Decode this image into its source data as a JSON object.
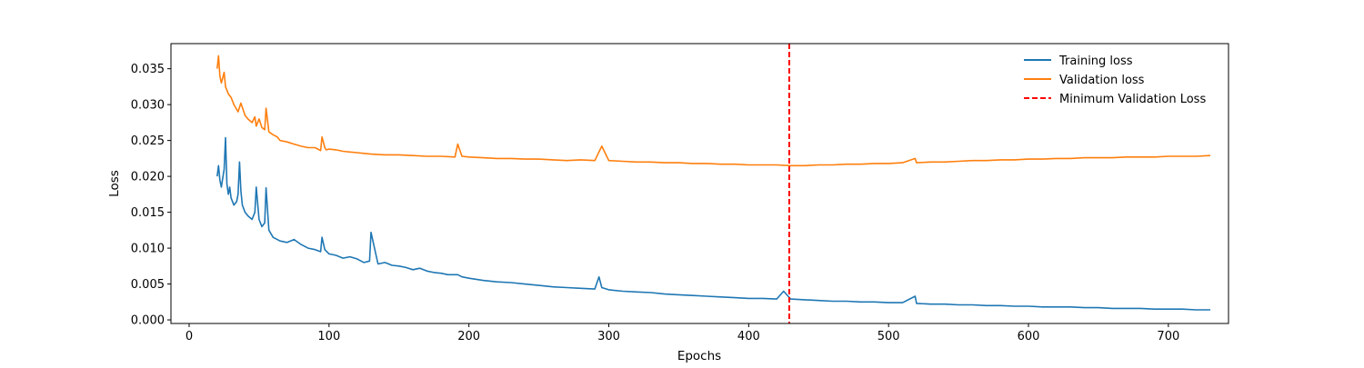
{
  "chart_data": {
    "type": "line",
    "title": "",
    "xlabel": "Epochs",
    "ylabel": "Loss",
    "xlim": [
      -13,
      743
    ],
    "ylim": [
      -0.0005,
      0.0385
    ],
    "xticks": [
      0,
      100,
      200,
      300,
      400,
      500,
      600,
      700
    ],
    "yticks": [
      0.0,
      0.005,
      0.01,
      0.015,
      0.02,
      0.025,
      0.03,
      0.035
    ],
    "ytick_labels": [
      "0.000",
      "0.005",
      "0.010",
      "0.015",
      "0.020",
      "0.025",
      "0.030",
      "0.035"
    ],
    "grid": false,
    "legend_position": "top-right",
    "series": [
      {
        "name": "Training loss",
        "color": "#1f77b4",
        "style": "solid",
        "x": [
          20,
          21,
          22,
          23,
          25,
          26,
          27,
          28,
          29,
          30,
          32,
          34,
          35,
          36,
          37,
          38,
          40,
          42,
          45,
          47,
          48,
          50,
          52,
          54,
          55,
          57,
          60,
          63,
          65,
          70,
          75,
          80,
          85,
          90,
          94,
          95,
          97,
          100,
          105,
          110,
          115,
          120,
          125,
          129,
          130,
          135,
          140,
          145,
          150,
          155,
          160,
          165,
          170,
          175,
          180,
          185,
          192,
          195,
          200,
          210,
          220,
          230,
          240,
          250,
          260,
          270,
          280,
          290,
          293,
          295,
          300,
          310,
          320,
          330,
          340,
          350,
          360,
          370,
          380,
          390,
          400,
          410,
          420,
          425,
          430,
          440,
          450,
          460,
          470,
          480,
          490,
          500,
          510,
          519,
          520,
          530,
          540,
          550,
          560,
          570,
          580,
          590,
          600,
          610,
          620,
          630,
          640,
          650,
          660,
          670,
          680,
          690,
          700,
          710,
          720,
          730
        ],
        "y": [
          0.02,
          0.0215,
          0.0195,
          0.0185,
          0.021,
          0.0254,
          0.019,
          0.0175,
          0.0185,
          0.017,
          0.016,
          0.0165,
          0.0175,
          0.022,
          0.018,
          0.016,
          0.015,
          0.0145,
          0.014,
          0.015,
          0.0185,
          0.014,
          0.013,
          0.0135,
          0.0184,
          0.0125,
          0.0115,
          0.0112,
          0.011,
          0.0108,
          0.0112,
          0.0105,
          0.01,
          0.0098,
          0.0095,
          0.0115,
          0.0098,
          0.0092,
          0.009,
          0.0086,
          0.0088,
          0.0085,
          0.008,
          0.0082,
          0.0122,
          0.0078,
          0.008,
          0.0076,
          0.0075,
          0.0073,
          0.007,
          0.0072,
          0.0068,
          0.0066,
          0.0065,
          0.0063,
          0.0063,
          0.006,
          0.0058,
          0.0055,
          0.0053,
          0.0052,
          0.005,
          0.0048,
          0.0046,
          0.0045,
          0.0044,
          0.0043,
          0.006,
          0.0045,
          0.0042,
          0.004,
          0.0039,
          0.0038,
          0.0036,
          0.0035,
          0.0034,
          0.0033,
          0.0032,
          0.0031,
          0.003,
          0.003,
          0.0029,
          0.004,
          0.0029,
          0.0028,
          0.0027,
          0.0026,
          0.0026,
          0.0025,
          0.0025,
          0.0024,
          0.0024,
          0.0033,
          0.0023,
          0.0022,
          0.0022,
          0.0021,
          0.0021,
          0.002,
          0.002,
          0.0019,
          0.0019,
          0.0018,
          0.0018,
          0.0018,
          0.0017,
          0.0017,
          0.0016,
          0.0016,
          0.0016,
          0.0015,
          0.0015,
          0.0015,
          0.0014,
          0.0014
        ]
      },
      {
        "name": "Validation loss",
        "color": "#ff7f0e",
        "style": "solid",
        "x": [
          20,
          21,
          22,
          23,
          25,
          26,
          28,
          30,
          32,
          35,
          37,
          40,
          42,
          45,
          47,
          48,
          50,
          52,
          54,
          55,
          57,
          60,
          63,
          65,
          70,
          75,
          80,
          85,
          90,
          94,
          95,
          97,
          98,
          100,
          105,
          110,
          115,
          120,
          125,
          130,
          140,
          150,
          160,
          170,
          180,
          190,
          192,
          195,
          200,
          210,
          220,
          230,
          240,
          250,
          260,
          270,
          280,
          290,
          295,
          300,
          310,
          320,
          330,
          340,
          350,
          360,
          370,
          380,
          390,
          400,
          410,
          420,
          430,
          440,
          450,
          460,
          470,
          480,
          490,
          500,
          510,
          519,
          520,
          530,
          540,
          550,
          560,
          570,
          580,
          590,
          600,
          610,
          620,
          630,
          640,
          650,
          660,
          670,
          680,
          690,
          700,
          710,
          720,
          730
        ],
        "y": [
          0.035,
          0.0368,
          0.034,
          0.033,
          0.0345,
          0.0325,
          0.0315,
          0.031,
          0.03,
          0.029,
          0.0302,
          0.0285,
          0.028,
          0.0275,
          0.0283,
          0.027,
          0.028,
          0.0268,
          0.0265,
          0.0295,
          0.0262,
          0.0258,
          0.0255,
          0.025,
          0.0248,
          0.0245,
          0.0242,
          0.024,
          0.024,
          0.0236,
          0.0255,
          0.024,
          0.0237,
          0.0238,
          0.0237,
          0.0235,
          0.0234,
          0.0233,
          0.0232,
          0.0231,
          0.023,
          0.023,
          0.0229,
          0.0228,
          0.0228,
          0.0227,
          0.0245,
          0.0228,
          0.0227,
          0.0226,
          0.0225,
          0.0225,
          0.0224,
          0.0224,
          0.0223,
          0.0222,
          0.0223,
          0.0222,
          0.0242,
          0.0222,
          0.0221,
          0.022,
          0.022,
          0.0219,
          0.0219,
          0.0218,
          0.0218,
          0.0217,
          0.0217,
          0.0216,
          0.0216,
          0.0216,
          0.0215,
          0.0215,
          0.0216,
          0.0216,
          0.0217,
          0.0217,
          0.0218,
          0.0218,
          0.0219,
          0.0225,
          0.0219,
          0.022,
          0.022,
          0.0221,
          0.0222,
          0.0222,
          0.0223,
          0.0223,
          0.0224,
          0.0224,
          0.0225,
          0.0225,
          0.0226,
          0.0226,
          0.0226,
          0.0227,
          0.0227,
          0.0227,
          0.0228,
          0.0228,
          0.0228,
          0.0229
        ]
      }
    ],
    "vlines": [
      {
        "name": "Minimum Validation Loss",
        "x": 429,
        "color": "#ff0000",
        "style": "dashed"
      }
    ]
  }
}
